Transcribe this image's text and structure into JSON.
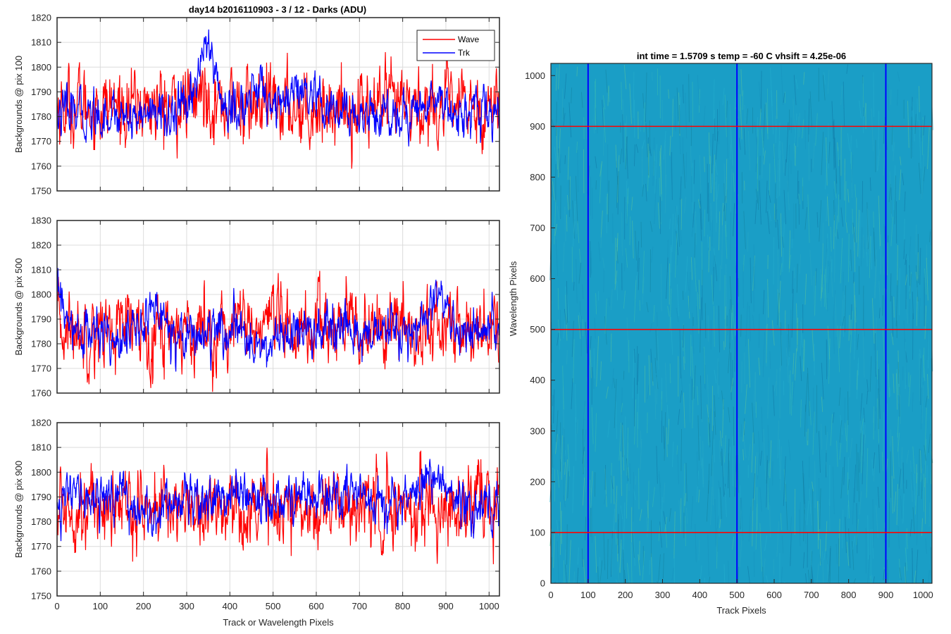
{
  "figure": {
    "title": "day14 b2016110903 - 3 / 12 - Darks (ADU)"
  },
  "chart_data": [
    {
      "type": "line",
      "ylabel": "Backgrounds @ pix 100",
      "xlabel": "",
      "xlim": [
        0,
        1024
      ],
      "ylim": [
        1750,
        1820
      ],
      "x_ticks": [
        0,
        100,
        200,
        300,
        400,
        500,
        600,
        700,
        800,
        900,
        1000
      ],
      "y_ticks": [
        1750,
        1760,
        1770,
        1780,
        1790,
        1800,
        1810,
        1820
      ],
      "grid": true,
      "legend": "top-right",
      "series": [
        {
          "name": "Wave",
          "color": "#ff0000",
          "mean": 1784,
          "std": 8,
          "bumps": [
            [
              340,
              25,
              6
            ]
          ]
        },
        {
          "name": "Trk",
          "color": "#0000ff",
          "mean": 1781,
          "std": 5,
          "bumps": [
            [
              345,
              30,
              27
            ],
            [
              470,
              35,
              10
            ],
            [
              560,
              40,
              8
            ],
            [
              880,
              30,
              8
            ]
          ]
        }
      ]
    },
    {
      "type": "line",
      "ylabel": "Backgrounds @ pix 500",
      "xlabel": "",
      "xlim": [
        0,
        1024
      ],
      "ylim": [
        1760,
        1830
      ],
      "x_ticks": [
        0,
        100,
        200,
        300,
        400,
        500,
        600,
        700,
        800,
        900,
        1000
      ],
      "y_ticks": [
        1760,
        1770,
        1780,
        1790,
        1800,
        1810,
        1820,
        1830
      ],
      "grid": true,
      "series": [
        {
          "name": "Wave",
          "color": "#ff0000",
          "mean": 1786,
          "std": 8,
          "bumps": []
        },
        {
          "name": "Trk",
          "color": "#0000ff",
          "mean": 1784,
          "std": 5,
          "bumps": [
            [
              5,
              15,
              16
            ],
            [
              230,
              30,
              10
            ],
            [
              880,
              30,
              14
            ],
            [
              480,
              20,
              -8
            ]
          ]
        }
      ]
    },
    {
      "type": "line",
      "ylabel": "Backgrounds @ pix 900",
      "xlabel": "Track or Wavelength Pixels",
      "xlim": [
        0,
        1024
      ],
      "ylim": [
        1750,
        1820
      ],
      "x_ticks": [
        0,
        100,
        200,
        300,
        400,
        500,
        600,
        700,
        800,
        900,
        1000
      ],
      "y_ticks": [
        1750,
        1760,
        1770,
        1780,
        1790,
        1800,
        1810,
        1820
      ],
      "grid": true,
      "series": [
        {
          "name": "Wave",
          "color": "#ff0000",
          "mean": 1786,
          "std": 8,
          "bumps": []
        },
        {
          "name": "Trk",
          "color": "#0000ff",
          "mean": 1790,
          "std": 5,
          "bumps": [
            [
              210,
              30,
              -10
            ],
            [
              870,
              30,
              10
            ],
            [
              960,
              25,
              -6
            ]
          ]
        }
      ]
    },
    {
      "type": "heatmap",
      "title": "int time = 1.5709 s    temp = -60 C    vhsift = 4.25e-06",
      "xlabel": "Track Pixels",
      "ylabel": "Wavelength Pixels",
      "xlim": [
        0,
        1024
      ],
      "ylim": [
        0,
        1024
      ],
      "x_ticks": [
        0,
        100,
        200,
        300,
        400,
        500,
        600,
        700,
        800,
        900,
        1000
      ],
      "y_ticks": [
        0,
        100,
        200,
        300,
        400,
        500,
        600,
        700,
        800,
        900,
        1000
      ],
      "colormap": "parula",
      "base_color": "#1a9ec6",
      "vertical_lines": {
        "positions": [
          100,
          500,
          900
        ],
        "color": "#0000ff"
      },
      "horizontal_lines": {
        "positions": [
          100,
          500,
          900
        ],
        "color": "#ff0000"
      }
    }
  ]
}
